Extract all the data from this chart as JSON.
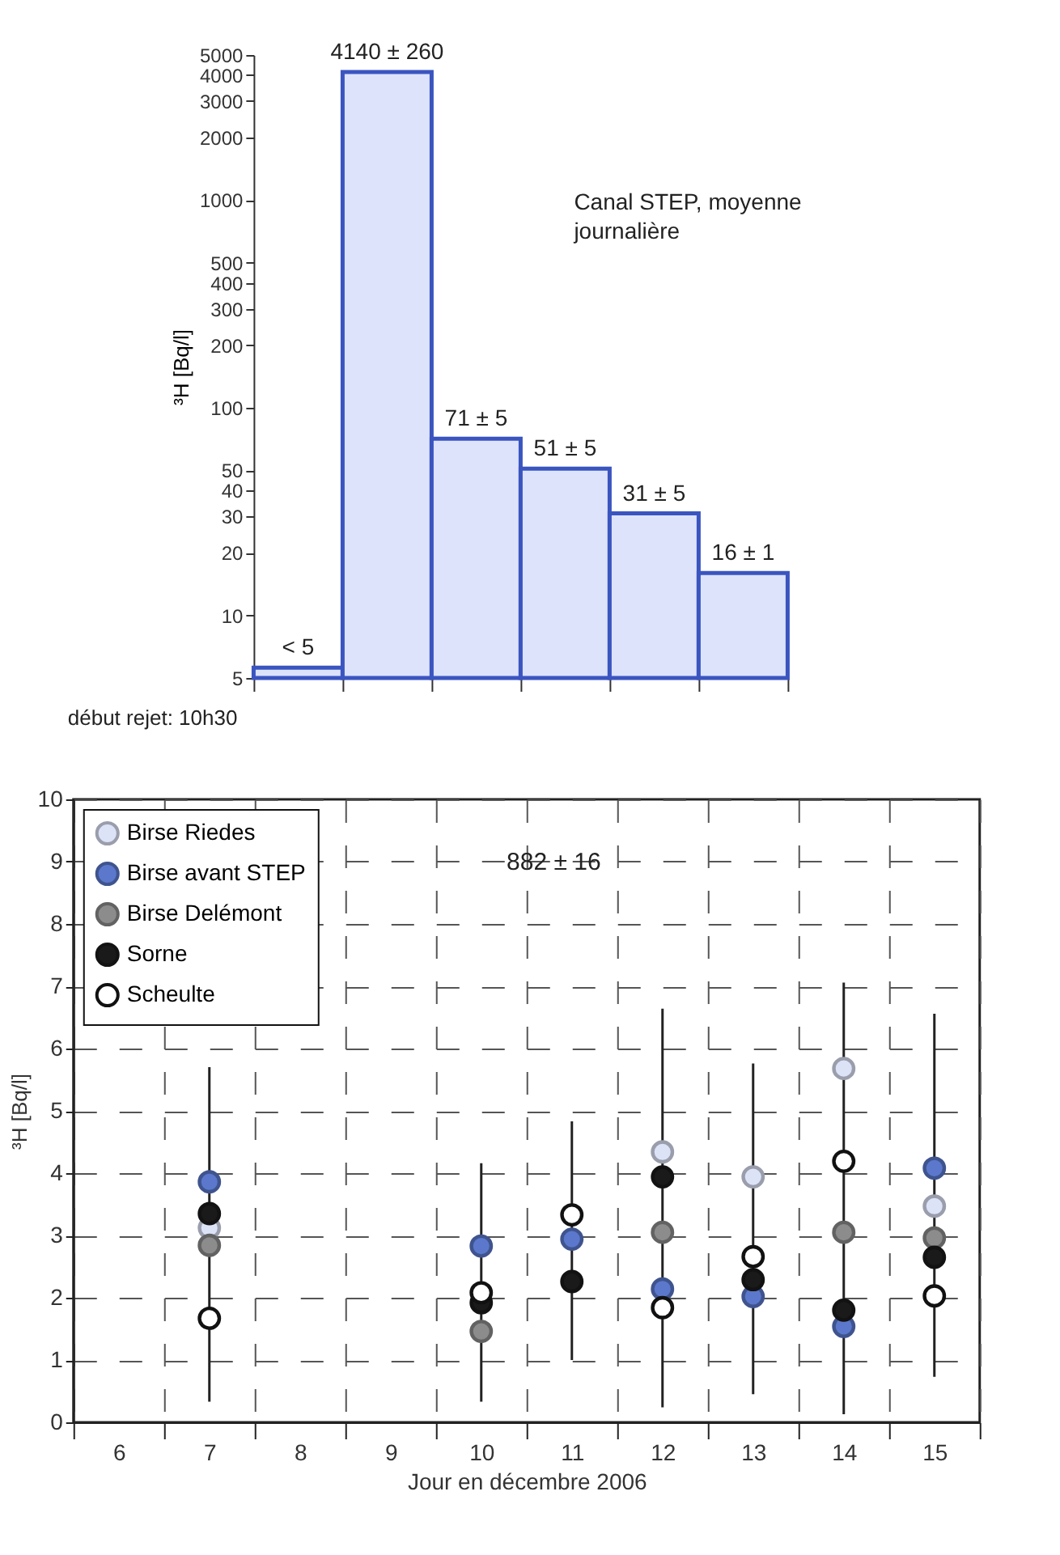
{
  "chart_data": [
    {
      "type": "bar",
      "categories": [
        null,
        null,
        null,
        null,
        null,
        null
      ],
      "values": [
        5.6,
        4140,
        71,
        51,
        31,
        16
      ],
      "value_labels": [
        "< 5",
        "4140 ± 260",
        "71 ± 5",
        "51 ± 5",
        "31 ± 5",
        "16 ± 1"
      ],
      "color": "#dde3fa",
      "ylabel": "³H [Bq/l]",
      "log": true,
      "ylim": [
        5,
        5000
      ],
      "yticks": [
        5,
        10,
        20,
        30,
        40,
        50,
        100,
        200,
        300,
        400,
        500,
        1000,
        2000,
        3000,
        4000,
        5000
      ],
      "tick_labels": "y",
      "annotations": [
        "Canal STEP, moyenne journalière",
        "début rejet: 10h30"
      ]
    },
    {
      "type": "scatter",
      "categories": [
        "6",
        "7",
        "8",
        "9",
        "10",
        "11",
        "12",
        "13",
        "14",
        "15"
      ],
      "xlabel": "Jour en décembre 2006",
      "ylabel": "³H [Bq/l]",
      "ylim": [
        0,
        10
      ],
      "yticks": [
        0,
        1,
        2,
        3,
        4,
        5,
        6,
        7,
        8,
        9,
        10
      ],
      "grid": true,
      "legend": "top left",
      "marker": "circle",
      "series": [
        {
          "name": "Birse Riedes",
          "color": "#dde3f7",
          "values": [
            null,
            3.12,
            null,
            null,
            null,
            null,
            4.34,
            3.94,
            5.68,
            3.47
          ]
        },
        {
          "name": "Birse avant STEP",
          "color": "#5b78cc",
          "values": [
            null,
            3.86,
            null,
            null,
            2.83,
            2.94,
            2.14,
            2.02,
            1.54,
            4.08
          ]
        },
        {
          "name": "Birse Delémont",
          "color": "#8c8c8c",
          "values": [
            null,
            2.84,
            null,
            null,
            1.46,
            null,
            3.05,
            null,
            3.05,
            2.96
          ]
        },
        {
          "name": "Sorne",
          "color": "#1a1a1a",
          "values": [
            null,
            3.35,
            null,
            null,
            1.92,
            2.26,
            3.94,
            2.29,
            1.8,
            2.65
          ],
          "errors": [
            null,
            [
              0.33,
              5.7
            ],
            null,
            null,
            [
              0.33,
              4.16
            ],
            [
              1.0,
              4.83
            ],
            [
              0.24,
              6.64
            ],
            [
              0.45,
              5.76
            ],
            [
              0.13,
              7.06
            ],
            [
              0.73,
              6.56
            ]
          ]
        },
        {
          "name": "Scheulte",
          "color": "#ffffff",
          "values": [
            null,
            1.67,
            null,
            null,
            2.08,
            3.33,
            1.84,
            2.66,
            4.19,
            2.03
          ]
        }
      ],
      "annotations": [
        "882 ± 16"
      ]
    }
  ]
}
